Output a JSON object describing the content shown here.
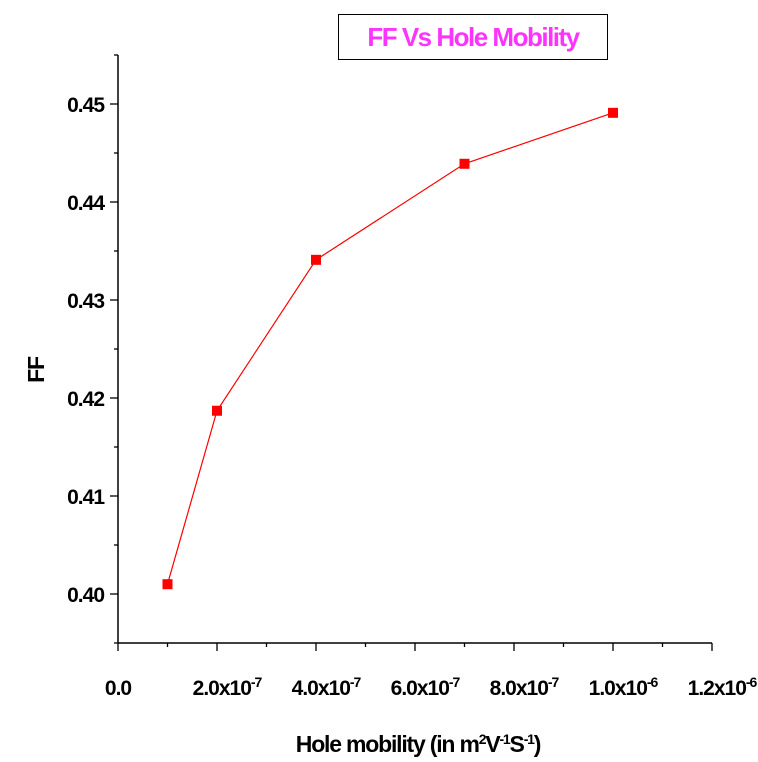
{
  "chart_data": {
    "type": "line",
    "title": "FF Vs Hole Mobility",
    "xlabel": {
      "main": "Hole mobility (in m",
      "s1": "2",
      "mid1": "V",
      "s2": "-1",
      "mid2": "S",
      "s3": "-1",
      "end": ")"
    },
    "ylabel": "FF",
    "xlim": [
      0,
      1.2e-06
    ],
    "ylim": [
      0.395,
      0.455
    ],
    "x_ticks": [
      {
        "mant": "0.0",
        "exp": ""
      },
      {
        "mant": "2.0x10",
        "exp": "-7"
      },
      {
        "mant": "4.0x10",
        "exp": "-7"
      },
      {
        "mant": "6.0x10",
        "exp": "-7"
      },
      {
        "mant": "8.0x10",
        "exp": "-7"
      },
      {
        "mant": "1.0x10",
        "exp": "-6"
      },
      {
        "mant": "1.2x10",
        "exp": "-6"
      }
    ],
    "y_ticks": [
      "0.40",
      "0.41",
      "0.42",
      "0.43",
      "0.44",
      "0.45"
    ],
    "series": [
      {
        "x": [
          1e-07,
          2e-07,
          4e-07,
          7e-07,
          1e-06
        ],
        "y": [
          0.401,
          0.4187,
          0.4341,
          0.4439,
          0.4491
        ]
      }
    ],
    "colors": {
      "line": "#ff0000",
      "marker": "#ff0000",
      "title": "#ff33ff"
    },
    "grid": false,
    "legend": "none"
  }
}
